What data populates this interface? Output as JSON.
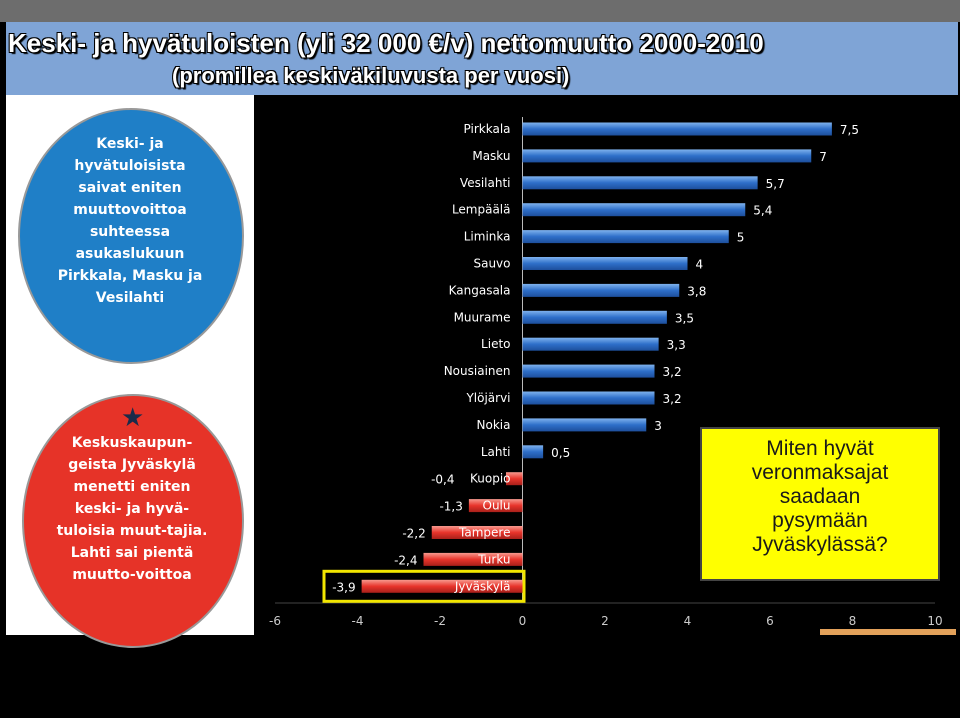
{
  "slide": {
    "title_line1": "Keski- ja hyvätuloisten (yli 32 000 €/v) nettomuutto 2000-2010",
    "title_line2": "(promillea keskiväkiluvusta per vuosi)",
    "blue_circle_text": "Keski- ja\nhyvätuloisista\nsaivat eniten\nmuuttovoittoa\nsuhteessa\nasukaslukuun\nPirkkala, Masku ja\nVesilahti",
    "red_circle_text": "Keskuskaupun-\ngeista Jyväskylä\nmenetti eniten\nkeski- ja hyvä-\ntuloisia muut-tajia.\nLahti sai pientä\nmuutto-voittoa",
    "callout_text": "Miten hyvät\nveronmaksajat\nsaadaan\npysymään\nJyväskylässä?",
    "star_icon": "star-icon"
  },
  "chart_data": {
    "type": "bar",
    "orientation": "horizontal",
    "categories": [
      "Pirkkala",
      "Masku",
      "Vesilahti",
      "Lempäälä",
      "Liminka",
      "Sauvo",
      "Kangasala",
      "Muurame",
      "Lieto",
      "Nousiainen",
      "Ylöjärvi",
      "Nokia",
      "Lahti",
      "Kuopio",
      "Oulu",
      "Tampere",
      "Turku",
      "Jyväskylä"
    ],
    "values": [
      7.5,
      7,
      5.7,
      5.4,
      5,
      4,
      3.8,
      3.5,
      3.3,
      3.2,
      3.2,
      3,
      0.5,
      -0.4,
      -1.3,
      -2.2,
      -2.4,
      -3.9
    ],
    "value_labels": [
      "7,5",
      "7",
      "5,7",
      "5,4",
      "5",
      "4",
      "3,8",
      "3,5",
      "3,3",
      "3,2",
      "3,2",
      "3",
      "0,5",
      "-0,4",
      "-1,3",
      "-2,2",
      "-2,4",
      "-3,9"
    ],
    "xlim": [
      -6,
      10
    ],
    "x_ticks": [
      "-6",
      "-4",
      "-2",
      "0",
      "2",
      "4",
      "6",
      "8",
      "10"
    ],
    "highlighted": "Jyväskylä",
    "colors": {
      "positive": "#2e6fc9",
      "negative": "#e8342b",
      "background": "#000000",
      "highlight": "#f2e600"
    }
  }
}
